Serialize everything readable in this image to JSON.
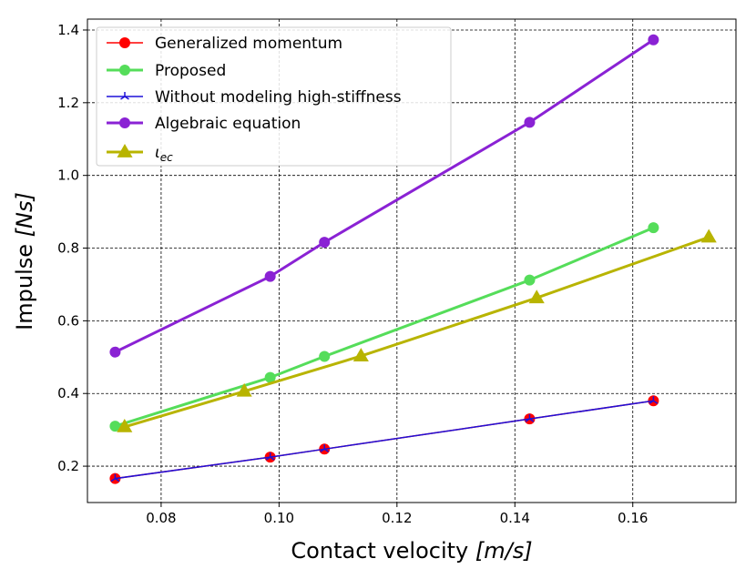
{
  "chart_data": {
    "type": "line",
    "xlabel_main": "Contact velocity ",
    "xlabel_unit": "[m/s]",
    "ylabel_main": "Impulse ",
    "ylabel_unit": "[Ns]",
    "xlim": [
      0.0675,
      0.1775
    ],
    "ylim": [
      0.1,
      1.43
    ],
    "xticks": [
      0.08,
      0.1,
      0.12,
      0.14,
      0.16
    ],
    "xtick_labels": [
      "0.08",
      "0.10",
      "0.12",
      "0.14",
      "0.16"
    ],
    "yticks": [
      0.2,
      0.4,
      0.6,
      0.8,
      1.0,
      1.2,
      1.4
    ],
    "ytick_labels": [
      "0.2",
      "0.4",
      "0.6",
      "0.8",
      "1.0",
      "1.2",
      "1.4"
    ],
    "grid": true,
    "legend_position": "top-left",
    "series": [
      {
        "name": "Generalized momentum",
        "color": "#ff0000",
        "marker": "circle",
        "line_width": "thin",
        "x": [
          0.0722,
          0.0985,
          0.1077,
          0.1425,
          0.1635
        ],
        "y": [
          0.166,
          0.225,
          0.247,
          0.33,
          0.38
        ]
      },
      {
        "name": "Proposed",
        "color": "#55dd5a",
        "marker": "circle",
        "line_width": "thick",
        "x": [
          0.0722,
          0.0985,
          0.1077,
          0.1425,
          0.1635
        ],
        "y": [
          0.31,
          0.444,
          0.502,
          0.712,
          0.856
        ]
      },
      {
        "name": "Without modeling high-stiffness",
        "color": "#1f10d8",
        "marker": "tri",
        "line_width": "thin",
        "x": [
          0.0722,
          0.0985,
          0.1077,
          0.1425,
          0.1635
        ],
        "y": [
          0.166,
          0.225,
          0.247,
          0.33,
          0.38
        ]
      },
      {
        "name": "Algebraic equation",
        "color": "#8a22d4",
        "marker": "circle",
        "line_width": "thick",
        "x": [
          0.0722,
          0.0985,
          0.1077,
          0.1425,
          0.1635
        ],
        "y": [
          0.514,
          0.722,
          0.816,
          1.146,
          1.373
        ]
      },
      {
        "name": "ιec",
        "color": "#b8b400",
        "marker": "triangle",
        "line_width": "thick",
        "x": [
          0.0738,
          0.0941,
          0.1139,
          0.1437,
          0.1729
        ],
        "y": [
          0.308,
          0.406,
          0.503,
          0.663,
          0.83
        ]
      }
    ]
  }
}
